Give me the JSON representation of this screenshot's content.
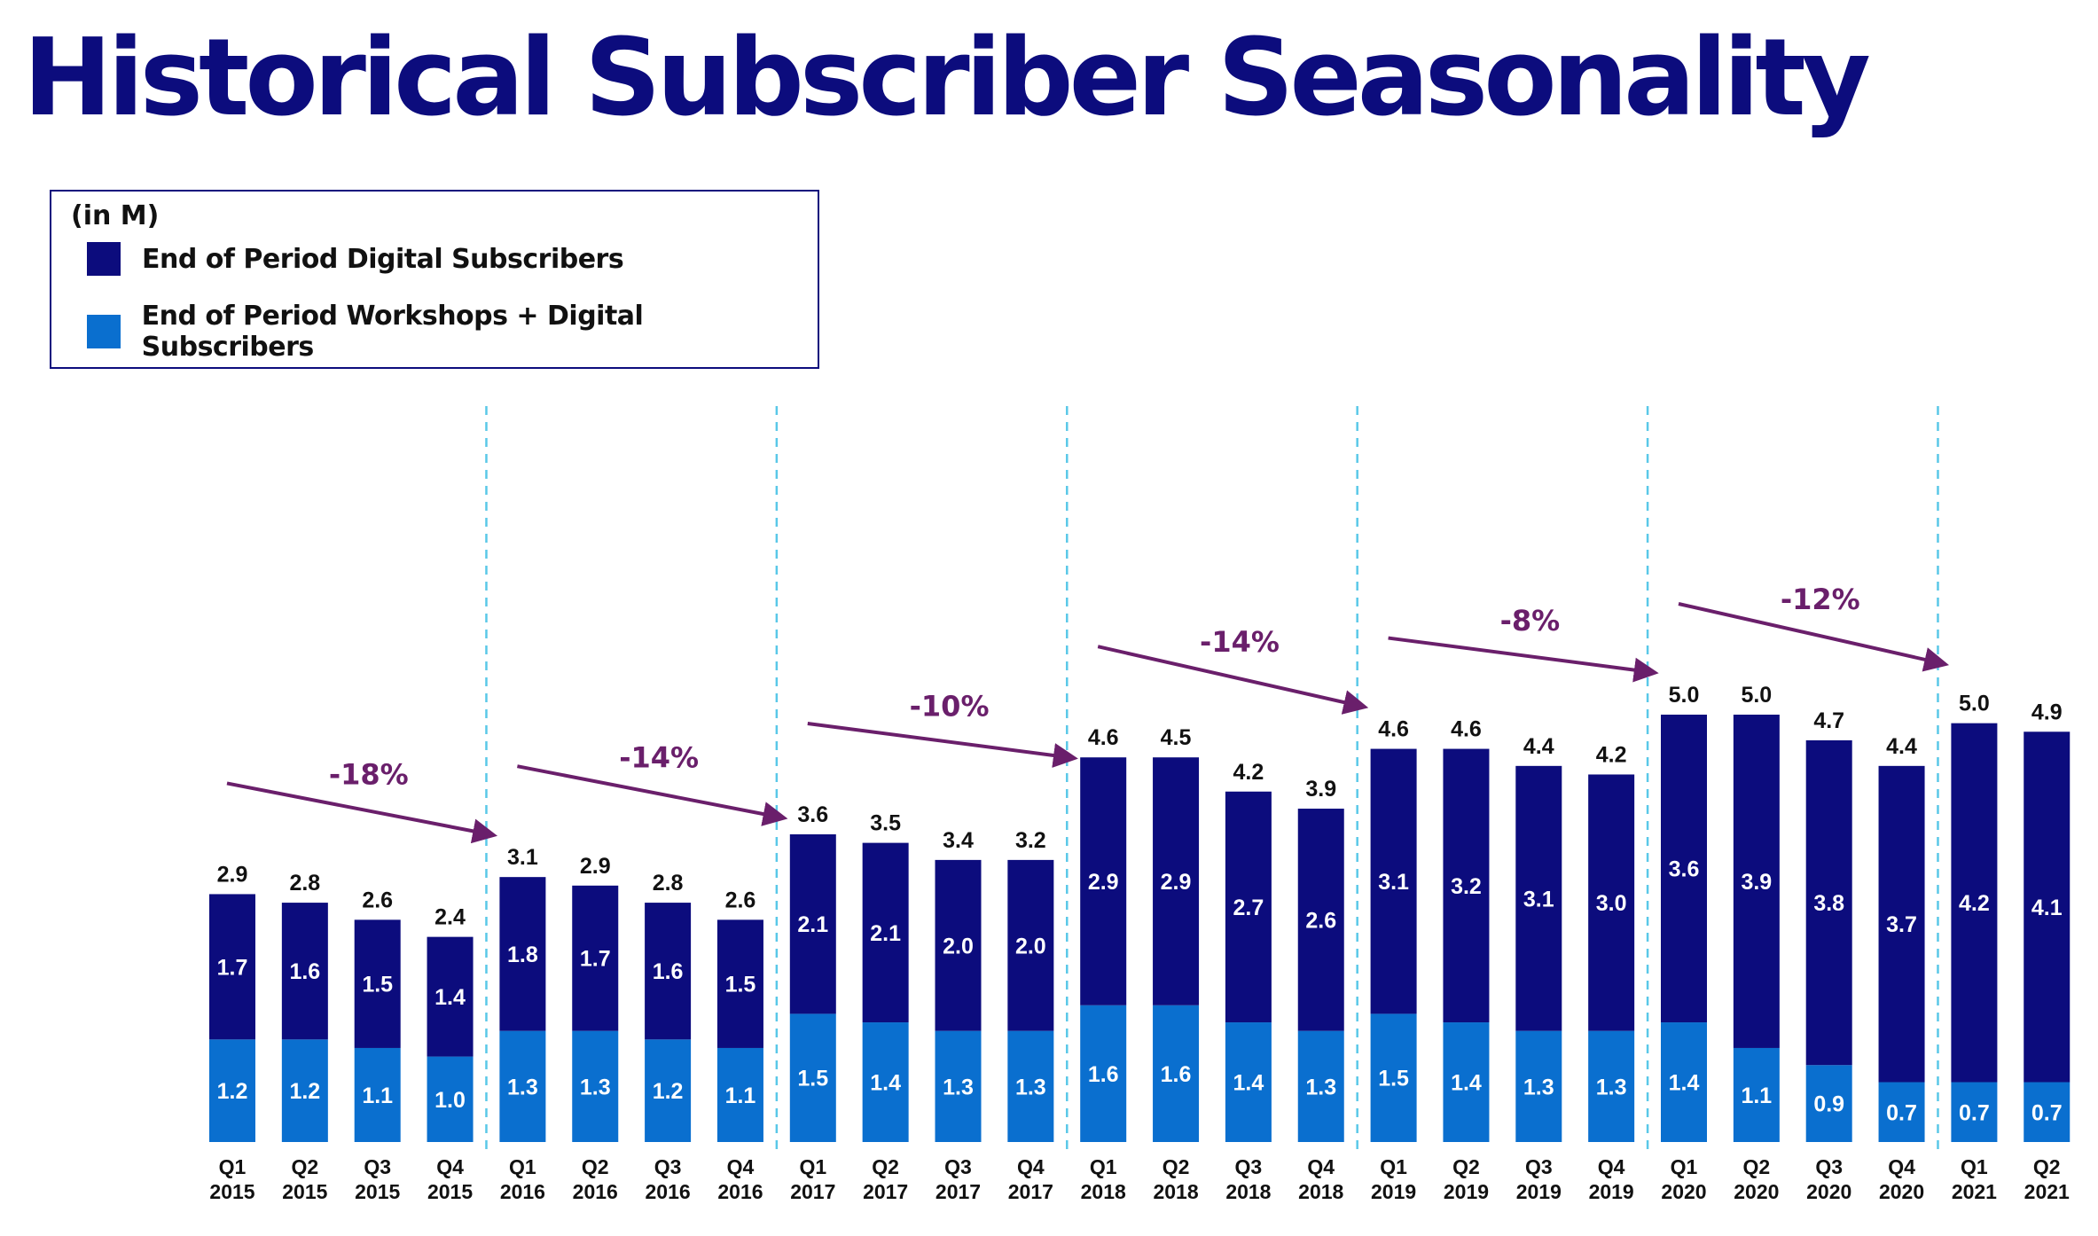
{
  "chart_data": {
    "type": "bar",
    "stacked": true,
    "title": "Historical Subscriber Seasonality",
    "units": "(in M)",
    "legend": [
      {
        "name": "End of Period Digital Subscribers",
        "color": "#0c0c7d"
      },
      {
        "name": "End of Period Workshops + Digital Subscribers",
        "color": "#0a6fcf"
      }
    ],
    "categories": [
      [
        "Q1",
        "2015"
      ],
      [
        "Q2",
        "2015"
      ],
      [
        "Q3",
        "2015"
      ],
      [
        "Q4",
        "2015"
      ],
      [
        "Q1",
        "2016"
      ],
      [
        "Q2",
        "2016"
      ],
      [
        "Q3",
        "2016"
      ],
      [
        "Q4",
        "2016"
      ],
      [
        "Q1",
        "2017"
      ],
      [
        "Q2",
        "2017"
      ],
      [
        "Q3",
        "2017"
      ],
      [
        "Q4",
        "2017"
      ],
      [
        "Q1",
        "2018"
      ],
      [
        "Q2",
        "2018"
      ],
      [
        "Q3",
        "2018"
      ],
      [
        "Q4",
        "2018"
      ],
      [
        "Q1",
        "2019"
      ],
      [
        "Q2",
        "2019"
      ],
      [
        "Q3",
        "2019"
      ],
      [
        "Q4",
        "2019"
      ],
      [
        "Q1",
        "2020"
      ],
      [
        "Q2",
        "2020"
      ],
      [
        "Q3",
        "2020"
      ],
      [
        "Q4",
        "2020"
      ],
      [
        "Q1",
        "2021"
      ],
      [
        "Q2",
        "2021"
      ]
    ],
    "series": [
      {
        "name": "End of Period Workshops + Digital Subscribers",
        "values": [
          "1.2",
          "1.2",
          "1.1",
          "1.0",
          "1.3",
          "1.3",
          "1.2",
          "1.1",
          "1.5",
          "1.4",
          "1.3",
          "1.3",
          "1.6",
          "1.6",
          "1.4",
          "1.3",
          "1.5",
          "1.4",
          "1.3",
          "1.3",
          "1.4",
          "1.1",
          "0.9",
          "0.7",
          "0.7",
          "0.7"
        ]
      },
      {
        "name": "End of Period Digital Subscribers",
        "values": [
          "1.7",
          "1.6",
          "1.5",
          "1.4",
          "1.8",
          "1.7",
          "1.6",
          "1.5",
          "2.1",
          "2.1",
          "2.0",
          "2.0",
          "2.9",
          "2.9",
          "2.7",
          "2.6",
          "3.1",
          "3.2",
          "3.1",
          "3.0",
          "3.6",
          "3.9",
          "3.8",
          "3.7",
          "4.2",
          "4.1"
        ]
      }
    ],
    "totals": [
      "2.9",
      "2.8",
      "2.6",
      "2.4",
      "3.1",
      "2.9",
      "2.8",
      "2.6",
      "3.6",
      "3.5",
      "3.4",
      "3.2",
      "4.6",
      "4.5",
      "4.2",
      "3.9",
      "4.6",
      "4.6",
      "4.4",
      "4.2",
      "5.0",
      "5.0",
      "4.7",
      "4.4",
      "5.0",
      "4.9"
    ],
    "annotations": [
      {
        "group": "2015",
        "text": "-18%"
      },
      {
        "group": "2016",
        "text": "-14%"
      },
      {
        "group": "2017",
        "text": "-10%"
      },
      {
        "group": "2018",
        "text": "-14%"
      },
      {
        "group": "2019",
        "text": "-8%"
      },
      {
        "group": "2020",
        "text": "-12%"
      }
    ],
    "ylim": [
      0,
      5.3
    ],
    "grid": false,
    "legend_position": "top-left",
    "colors": {
      "annotation": "#6a1f6b",
      "separator": "#5ac8e8",
      "text": "#111111"
    }
  }
}
